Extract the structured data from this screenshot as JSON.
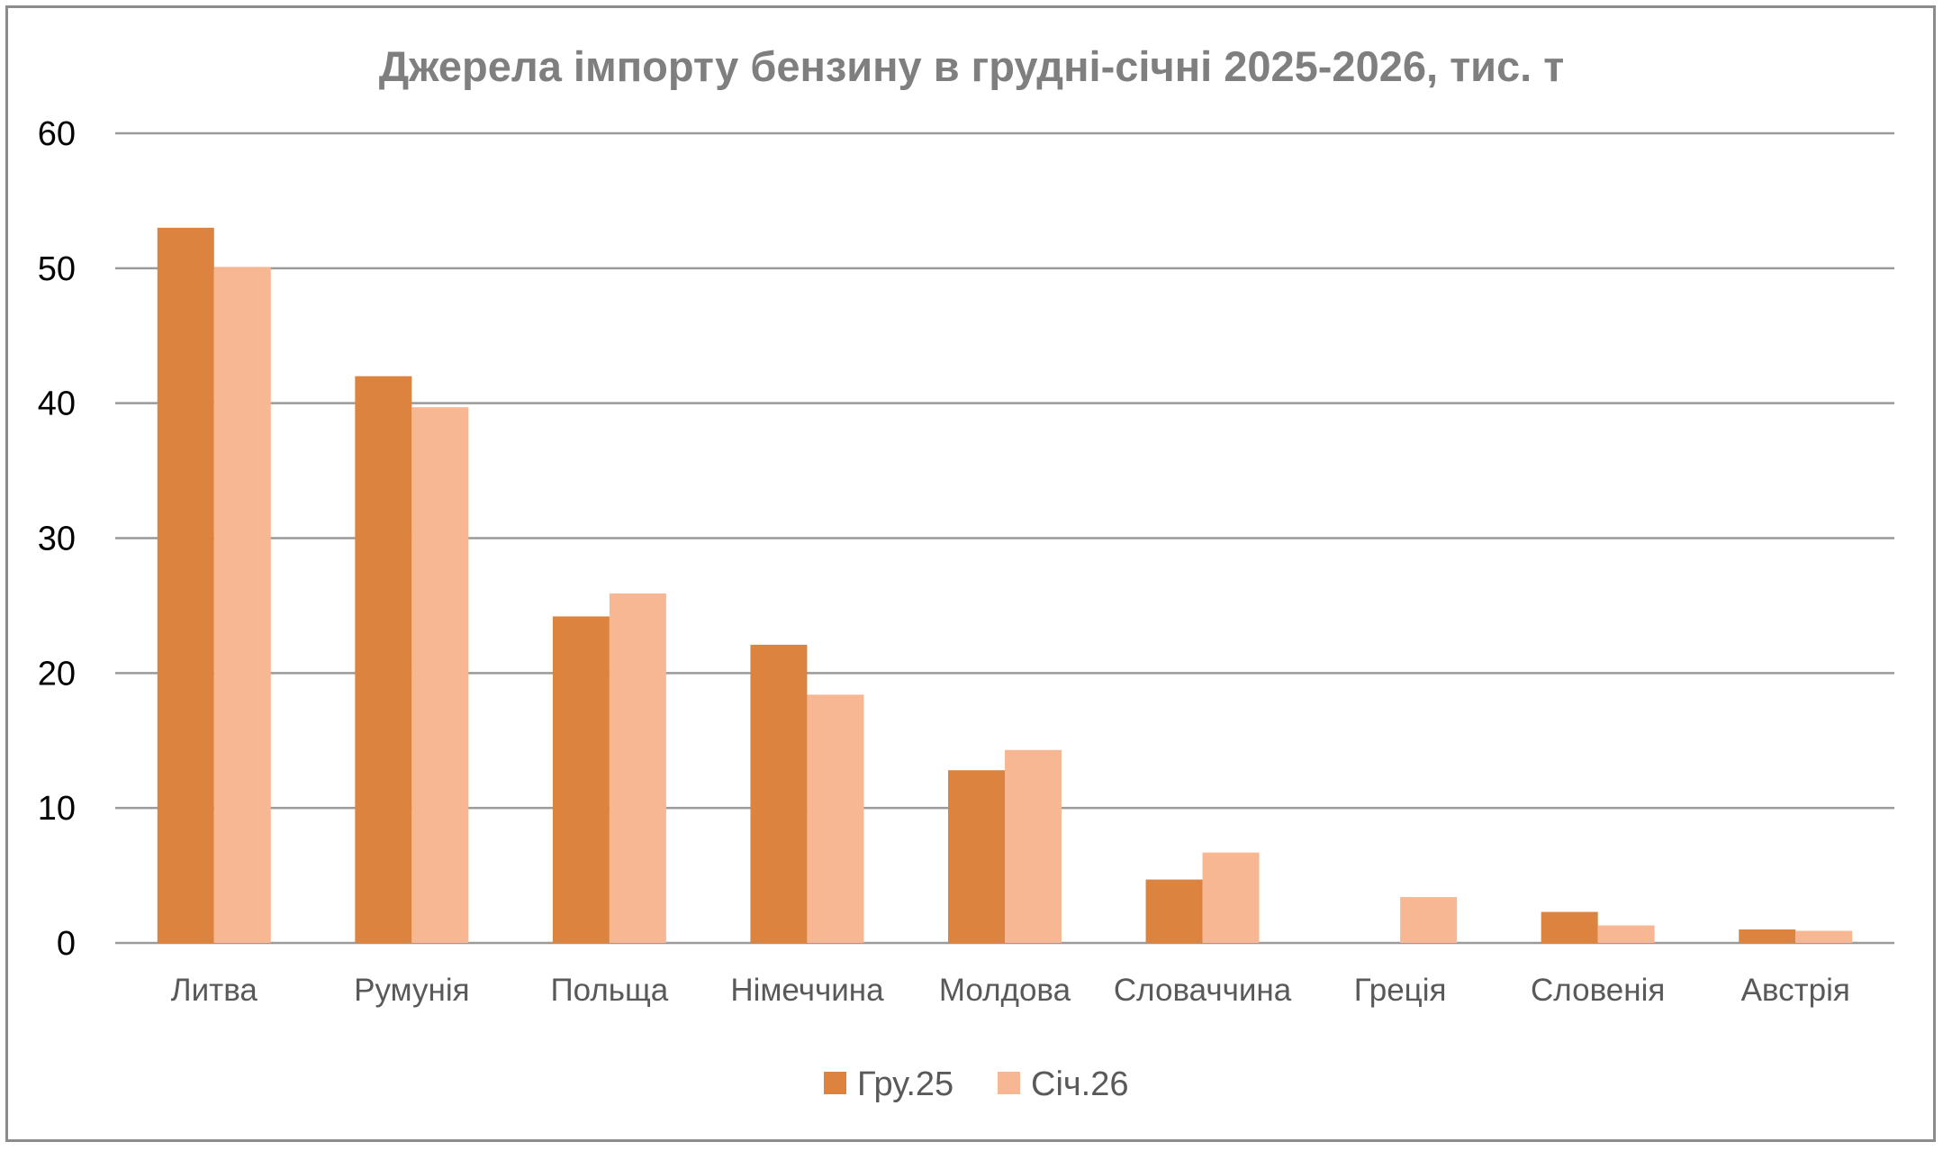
{
  "chart_data": {
    "type": "bar",
    "title": "Джерела імпорту бензину в грудні-січні 2025-2026, тис. т",
    "xlabel": "",
    "ylabel": "",
    "categories": [
      "Литва",
      "Румунія",
      "Польща",
      "Німеччина",
      "Молдова",
      "Словаччина",
      "Греція",
      "Словенія",
      "Австрія"
    ],
    "series": [
      {
        "name": "Гру.25",
        "color": "#dc843f",
        "values": [
          53.0,
          42.0,
          24.2,
          22.1,
          12.8,
          4.7,
          0,
          2.3,
          1.0
        ]
      },
      {
        "name": "Січ.26",
        "color": "#f8b793",
        "values": [
          50.1,
          39.7,
          25.9,
          18.4,
          14.3,
          6.7,
          3.4,
          1.3,
          0.9
        ]
      }
    ],
    "ylim": [
      0,
      60
    ],
    "yticks": [
      0,
      10,
      20,
      30,
      40,
      50,
      60
    ],
    "grid": true,
    "legend_position": "bottom"
  }
}
